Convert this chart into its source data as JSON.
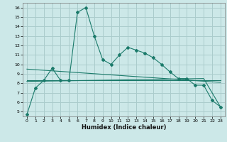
{
  "title": "",
  "xlabel": "Humidex (Indice chaleur)",
  "bg_color": "#cce8e8",
  "grid_color": "#aacccc",
  "line_color": "#1a7a6a",
  "xlim": [
    -0.5,
    23.5
  ],
  "ylim": [
    4.5,
    16.5
  ],
  "xticks": [
    0,
    1,
    2,
    3,
    4,
    5,
    6,
    7,
    8,
    9,
    10,
    11,
    12,
    13,
    14,
    15,
    16,
    17,
    18,
    19,
    20,
    21,
    22,
    23
  ],
  "yticks": [
    5,
    6,
    7,
    8,
    9,
    10,
    11,
    12,
    13,
    14,
    15,
    16
  ],
  "line1_x": [
    0,
    1,
    2,
    3,
    4,
    5,
    6,
    7,
    8,
    9,
    10,
    11,
    12,
    13,
    14,
    15,
    16,
    17,
    18,
    19,
    20,
    21,
    22,
    23
  ],
  "line1_y": [
    4.7,
    7.5,
    8.3,
    9.6,
    8.3,
    8.3,
    15.5,
    16.0,
    13.0,
    10.5,
    10.0,
    11.0,
    11.8,
    11.5,
    11.2,
    10.7,
    10.0,
    9.2,
    8.5,
    8.5,
    7.8,
    7.8,
    6.2,
    5.5
  ],
  "line2_x": [
    0,
    23
  ],
  "line2_y": [
    8.3,
    8.3
  ],
  "line3_x": [
    0,
    23
  ],
  "line3_y": [
    9.5,
    8.1
  ],
  "line4_x": [
    0,
    21,
    23
  ],
  "line4_y": [
    8.2,
    8.5,
    5.5
  ]
}
